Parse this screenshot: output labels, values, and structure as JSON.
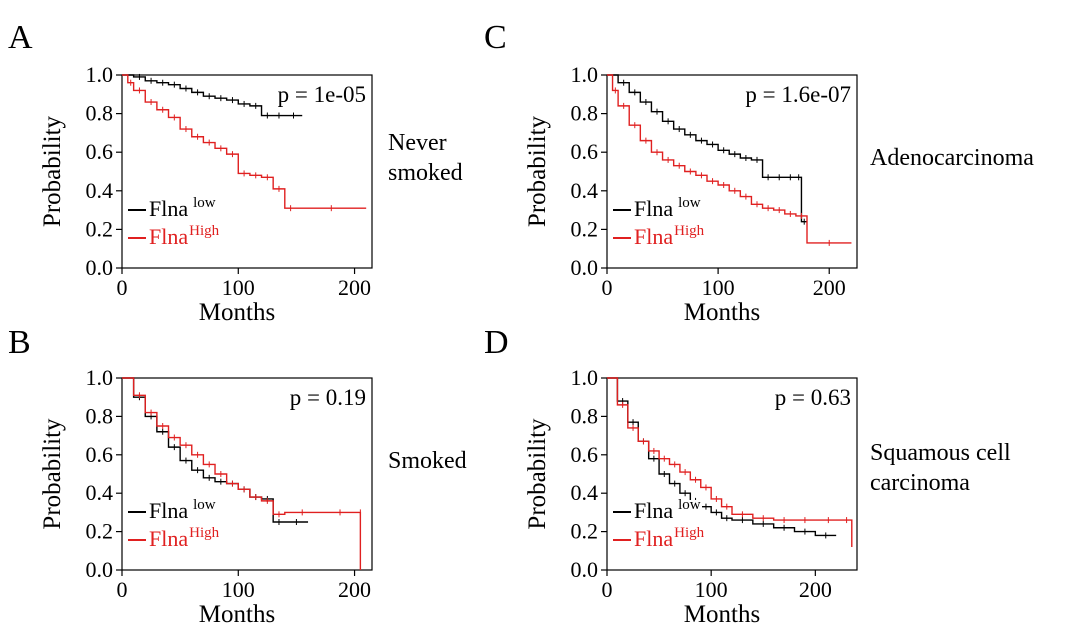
{
  "colors": {
    "low": "#000000",
    "high": "#e02020"
  },
  "chart_data": [
    {
      "panel": "A",
      "type": "line",
      "xlabel": "Months",
      "ylabel": "Probability",
      "xlim": [
        0,
        215
      ],
      "ylim": [
        0,
        1.0
      ],
      "xticks": [
        "0",
        "100",
        "200"
      ],
      "xtick_values": [
        0,
        100,
        200
      ],
      "yticks": [
        "0.0",
        "0.2",
        "0.4",
        "0.6",
        "0.8",
        "1.0"
      ],
      "ytick_values": [
        0,
        0.2,
        0.4,
        0.6,
        0.8,
        1.0
      ],
      "pvalue": "p = 1e-05",
      "group_label": [
        "Never",
        "smoked"
      ],
      "legend": [
        {
          "name": "Flna",
          "sup": "low",
          "color": "#000000"
        },
        {
          "name": "Flna",
          "sup": "High",
          "color": "#e02020"
        }
      ],
      "series": [
        {
          "name": "low",
          "color": "#000000",
          "x": [
            0,
            10,
            20,
            30,
            40,
            50,
            60,
            70,
            80,
            90,
            100,
            110,
            120,
            130,
            140,
            155
          ],
          "y": [
            1.0,
            0.99,
            0.97,
            0.96,
            0.95,
            0.93,
            0.91,
            0.89,
            0.88,
            0.87,
            0.85,
            0.84,
            0.79,
            0.79,
            0.79,
            0.79
          ]
        },
        {
          "name": "High",
          "color": "#e02020",
          "x": [
            0,
            5,
            10,
            20,
            30,
            40,
            50,
            60,
            70,
            80,
            90,
            100,
            110,
            120,
            130,
            140,
            150,
            210
          ],
          "y": [
            1.0,
            0.96,
            0.92,
            0.86,
            0.82,
            0.78,
            0.72,
            0.68,
            0.65,
            0.62,
            0.59,
            0.49,
            0.48,
            0.47,
            0.41,
            0.31,
            0.31,
            0.31
          ]
        }
      ]
    },
    {
      "panel": "B",
      "type": "line",
      "xlabel": "Months",
      "ylabel": "Probability",
      "xlim": [
        0,
        215
      ],
      "ylim": [
        0,
        1.0
      ],
      "xticks": [
        "0",
        "100",
        "200"
      ],
      "xtick_values": [
        0,
        100,
        200
      ],
      "yticks": [
        "0.0",
        "0.2",
        "0.4",
        "0.6",
        "0.8",
        "1.0"
      ],
      "ytick_values": [
        0,
        0.2,
        0.4,
        0.6,
        0.8,
        1.0
      ],
      "pvalue": "p = 0.19",
      "group_label": [
        "Smoked"
      ],
      "legend": [
        {
          "name": "Flna",
          "sup": "low",
          "color": "#000000"
        },
        {
          "name": "Flna",
          "sup": "High",
          "color": "#e02020"
        }
      ],
      "series": [
        {
          "name": "low",
          "color": "#000000",
          "x": [
            0,
            10,
            20,
            30,
            40,
            50,
            60,
            70,
            80,
            90,
            100,
            110,
            120,
            130,
            140,
            160
          ],
          "y": [
            1.0,
            0.9,
            0.8,
            0.72,
            0.64,
            0.57,
            0.52,
            0.48,
            0.46,
            0.45,
            0.42,
            0.38,
            0.37,
            0.25,
            0.25,
            0.25
          ]
        },
        {
          "name": "High",
          "color": "#e02020",
          "x": [
            0,
            10,
            20,
            30,
            40,
            50,
            60,
            70,
            80,
            90,
            100,
            110,
            120,
            130,
            140,
            170,
            205,
            205
          ],
          "y": [
            1.0,
            0.91,
            0.82,
            0.75,
            0.69,
            0.65,
            0.6,
            0.55,
            0.5,
            0.45,
            0.42,
            0.38,
            0.36,
            0.29,
            0.3,
            0.3,
            0.3,
            0.0
          ]
        }
      ]
    },
    {
      "panel": "C",
      "type": "line",
      "xlabel": "Months",
      "ylabel": "Probability",
      "xlim": [
        0,
        225
      ],
      "ylim": [
        0,
        1.0
      ],
      "xticks": [
        "0",
        "100",
        "200"
      ],
      "xtick_values": [
        0,
        100,
        200
      ],
      "yticks": [
        "0.0",
        "0.2",
        "0.4",
        "0.6",
        "0.8",
        "1.0"
      ],
      "ytick_values": [
        0,
        0.2,
        0.4,
        0.6,
        0.8,
        1.0
      ],
      "pvalue": "p = 1.6e-07",
      "group_label": [
        "Adenocarcinoma"
      ],
      "legend": [
        {
          "name": "Flna",
          "sup": "low",
          "color": "#000000"
        },
        {
          "name": "Flna",
          "sup": "High",
          "color": "#e02020"
        }
      ],
      "series": [
        {
          "name": "low",
          "color": "#000000",
          "x": [
            0,
            10,
            20,
            30,
            40,
            50,
            60,
            70,
            80,
            90,
            100,
            110,
            120,
            130,
            140,
            150,
            160,
            170,
            175,
            180
          ],
          "y": [
            1.0,
            0.96,
            0.91,
            0.86,
            0.81,
            0.76,
            0.72,
            0.69,
            0.66,
            0.64,
            0.61,
            0.59,
            0.57,
            0.56,
            0.47,
            0.47,
            0.47,
            0.47,
            0.24,
            0.24
          ]
        },
        {
          "name": "High",
          "color": "#e02020",
          "x": [
            0,
            5,
            10,
            20,
            30,
            40,
            50,
            60,
            70,
            80,
            90,
            100,
            110,
            120,
            130,
            140,
            150,
            160,
            170,
            180,
            220
          ],
          "y": [
            1.0,
            0.92,
            0.84,
            0.74,
            0.66,
            0.6,
            0.56,
            0.53,
            0.5,
            0.48,
            0.45,
            0.43,
            0.4,
            0.37,
            0.33,
            0.31,
            0.3,
            0.28,
            0.27,
            0.13,
            0.13
          ]
        }
      ]
    },
    {
      "panel": "D",
      "type": "line",
      "xlabel": "Months",
      "ylabel": "Probability",
      "xlim": [
        0,
        240
      ],
      "ylim": [
        0,
        1.0
      ],
      "xticks": [
        "0",
        "100",
        "200"
      ],
      "xtick_values": [
        0,
        100,
        200
      ],
      "yticks": [
        "0.0",
        "0.2",
        "0.4",
        "0.6",
        "0.8",
        "1.0"
      ],
      "ytick_values": [
        0,
        0.2,
        0.4,
        0.6,
        0.8,
        1.0
      ],
      "pvalue": "p = 0.63",
      "group_label": [
        "Squamous cell",
        "carcinoma"
      ],
      "legend": [
        {
          "name": "Flna",
          "sup": "low",
          "color": "#000000"
        },
        {
          "name": "Flna",
          "sup": "High",
          "color": "#e02020"
        }
      ],
      "series": [
        {
          "name": "low",
          "color": "#000000",
          "x": [
            0,
            10,
            20,
            30,
            40,
            50,
            60,
            70,
            80,
            90,
            100,
            110,
            120,
            140,
            160,
            180,
            200,
            220
          ],
          "y": [
            1.0,
            0.88,
            0.77,
            0.67,
            0.58,
            0.5,
            0.45,
            0.4,
            0.36,
            0.33,
            0.3,
            0.27,
            0.26,
            0.24,
            0.22,
            0.2,
            0.18,
            0.18
          ]
        },
        {
          "name": "High",
          "color": "#e02020",
          "x": [
            0,
            10,
            20,
            30,
            40,
            50,
            60,
            70,
            80,
            90,
            100,
            110,
            120,
            140,
            160,
            180,
            200,
            225,
            235
          ],
          "y": [
            1.0,
            0.86,
            0.74,
            0.67,
            0.62,
            0.58,
            0.55,
            0.51,
            0.47,
            0.43,
            0.37,
            0.33,
            0.29,
            0.27,
            0.26,
            0.26,
            0.26,
            0.26,
            0.12
          ]
        }
      ]
    }
  ]
}
